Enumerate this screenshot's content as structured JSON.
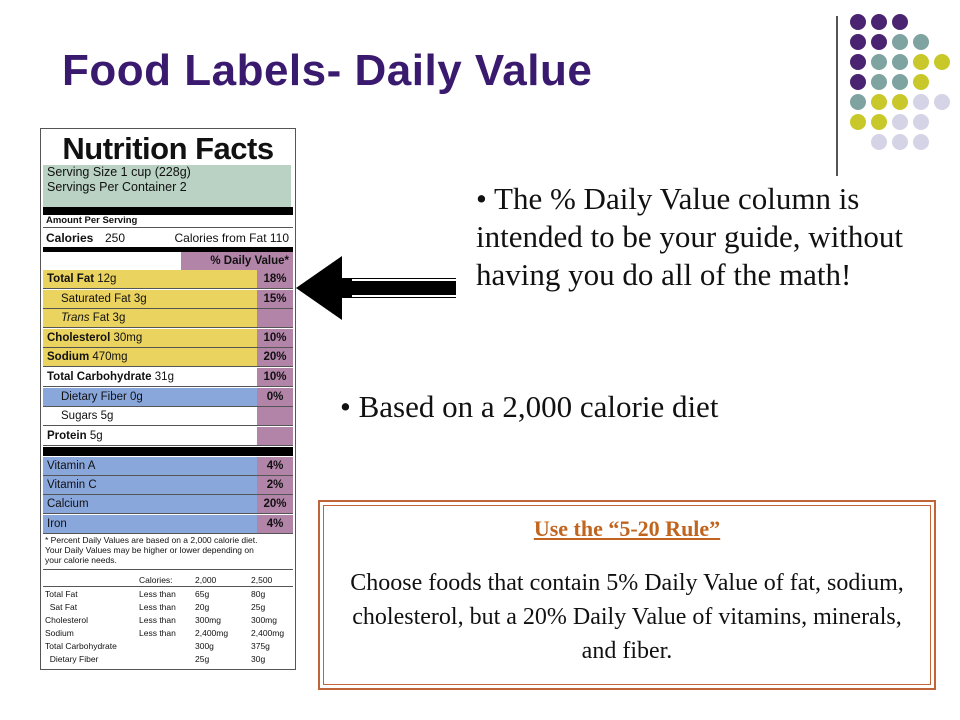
{
  "title": "Food Labels- Daily Value",
  "decor_colors": {
    "purple": "#4a2470",
    "teal": "#7fa3a0",
    "olive": "#c8c82a",
    "lavender": "#d5d3e6"
  },
  "label": {
    "title": "Nutrition Facts",
    "serving_size": "Serving Size 1 cup (228g)",
    "servings_per_container": "Servings Per Container  2",
    "amount_per_serving": "Amount Per Serving",
    "calories": "Calories",
    "calories_value": "250",
    "calories_from_fat": "Calories from Fat 110",
    "dv_header": "% Daily Value*",
    "rows": [
      {
        "name": "Total Fat",
        "amount": "12g",
        "pct": "18%"
      },
      {
        "name": "Saturated Fat",
        "amount": "3g",
        "pct": "15%"
      },
      {
        "name": "Trans",
        "suffix": " Fat",
        "amount": "3g",
        "pct": ""
      },
      {
        "name": "Cholesterol",
        "amount": "30mg",
        "pct": "10%"
      },
      {
        "name": "Sodium",
        "amount": "470mg",
        "pct": "20%"
      },
      {
        "name": "Total Carbohydrate",
        "amount": "31g",
        "pct": "10%"
      },
      {
        "name": "Dietary Fiber",
        "amount": "0g",
        "pct": "0%"
      },
      {
        "name": "Sugars",
        "amount": "5g",
        "pct": ""
      },
      {
        "name": "Protein",
        "amount": "5g",
        "pct": ""
      }
    ],
    "vitamins": [
      {
        "name": "Vitamin A",
        "pct": "4%"
      },
      {
        "name": "Vitamin C",
        "pct": "2%"
      },
      {
        "name": "Calcium",
        "pct": "20%"
      },
      {
        "name": "Iron",
        "pct": "4%"
      }
    ],
    "footnote": [
      "* Percent Daily Values are based on a 2,000 calorie diet.",
      "  Your Daily Values may be higher or lower depending on",
      "  your calorie needs."
    ],
    "table_header": [
      "Calories:",
      "2,000",
      "2,500"
    ],
    "table": [
      [
        "Total Fat",
        "Less than",
        "65g",
        "80g"
      ],
      [
        "  Sat Fat",
        "Less than",
        "20g",
        "25g"
      ],
      [
        "Cholesterol",
        "Less than",
        "300mg",
        "300mg"
      ],
      [
        "Sodium",
        "Less than",
        "2,400mg",
        "2,400mg"
      ],
      [
        "Total Carbohydrate",
        "",
        "300g",
        "375g"
      ],
      [
        "  Dietary Fiber",
        "",
        "25g",
        "30g"
      ]
    ]
  },
  "bullet1": "• The % Daily Value column is intended to be your guide, without having you do all of the math!",
  "bullet2": "• Based on a 2,000 calorie diet",
  "rule": {
    "heading": "Use the “5-20 Rule”",
    "body": "Choose foods that contain 5% Daily Value of fat, sodium, cholesterol, but a 20% Daily Value of vitamins, minerals, and fiber."
  }
}
